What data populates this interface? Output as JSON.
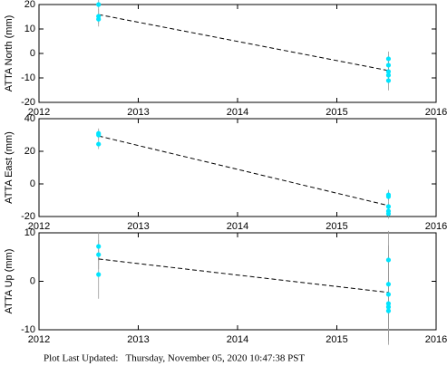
{
  "chart_data": [
    {
      "type": "scatter",
      "y_label": "ATTA North (mm)",
      "color": "#00e5ff",
      "xlim": [
        2012,
        2016
      ],
      "xticks": [
        2012,
        2013,
        2014,
        2015,
        2016
      ],
      "ylim": [
        -20,
        20
      ],
      "yticks": [
        -20,
        -10,
        0,
        10,
        20
      ],
      "points": {
        "x": [
          2012.6,
          2012.6,
          2012.6,
          2015.52,
          2015.52,
          2015.52,
          2015.52,
          2015.52
        ],
        "values": [
          20,
          15.2,
          14,
          -2.2,
          -4.8,
          -7.4,
          -8.9,
          -11.1
        ],
        "errors": [
          3,
          3,
          3,
          3,
          3,
          3,
          3,
          4
        ]
      },
      "trend": {
        "x": [
          2012.6,
          2015.52
        ],
        "values": [
          15.9,
          -7
        ]
      }
    },
    {
      "type": "scatter",
      "y_label": "ATTA East (mm)",
      "color": "#00e5ff",
      "xlim": [
        2012,
        2016
      ],
      "xticks": [
        2012,
        2013,
        2014,
        2015,
        2016
      ],
      "ylim": [
        -20,
        40
      ],
      "yticks": [
        -20,
        0,
        20,
        40
      ],
      "points": {
        "x": [
          2012.6,
          2012.6,
          2012.6,
          2015.52,
          2015.52,
          2015.52,
          2015.52,
          2015.52
        ],
        "values": [
          31,
          30,
          24.4,
          -6.7,
          -7.8,
          -13.9,
          -16.7,
          -18.3
        ],
        "errors": [
          3,
          3,
          3,
          3,
          3,
          3,
          3,
          3
        ]
      },
      "trend": {
        "x": [
          2012.6,
          2015.52
        ],
        "values": [
          29.4,
          -13.3
        ]
      }
    },
    {
      "type": "scatter",
      "y_label": "ATTA Up (mm)",
      "color": "#00e5ff",
      "xlim": [
        2012,
        2016
      ],
      "xticks": [
        2012,
        2013,
        2014,
        2015,
        2016
      ],
      "ylim": [
        -10,
        10
      ],
      "yticks": [
        -10,
        0,
        10
      ],
      "points": {
        "x": [
          2012.6,
          2012.6,
          2012.6,
          2015.52,
          2015.52,
          2015.52,
          2015.52,
          2015.52,
          2015.52
        ],
        "values": [
          7.2,
          5.5,
          1.4,
          4.4,
          -0.6,
          -2.7,
          -4.6,
          -5.3,
          -6.1
        ],
        "errors": [
          3,
          3,
          5,
          6,
          8,
          8,
          7,
          7,
          7
        ]
      },
      "trend": {
        "x": [
          2012.6,
          2015.52
        ],
        "values": [
          4.6,
          -2.3
        ]
      }
    }
  ],
  "footer": "Plot Last Updated:   Thursday, November 05, 2020 10:47:38 PST"
}
